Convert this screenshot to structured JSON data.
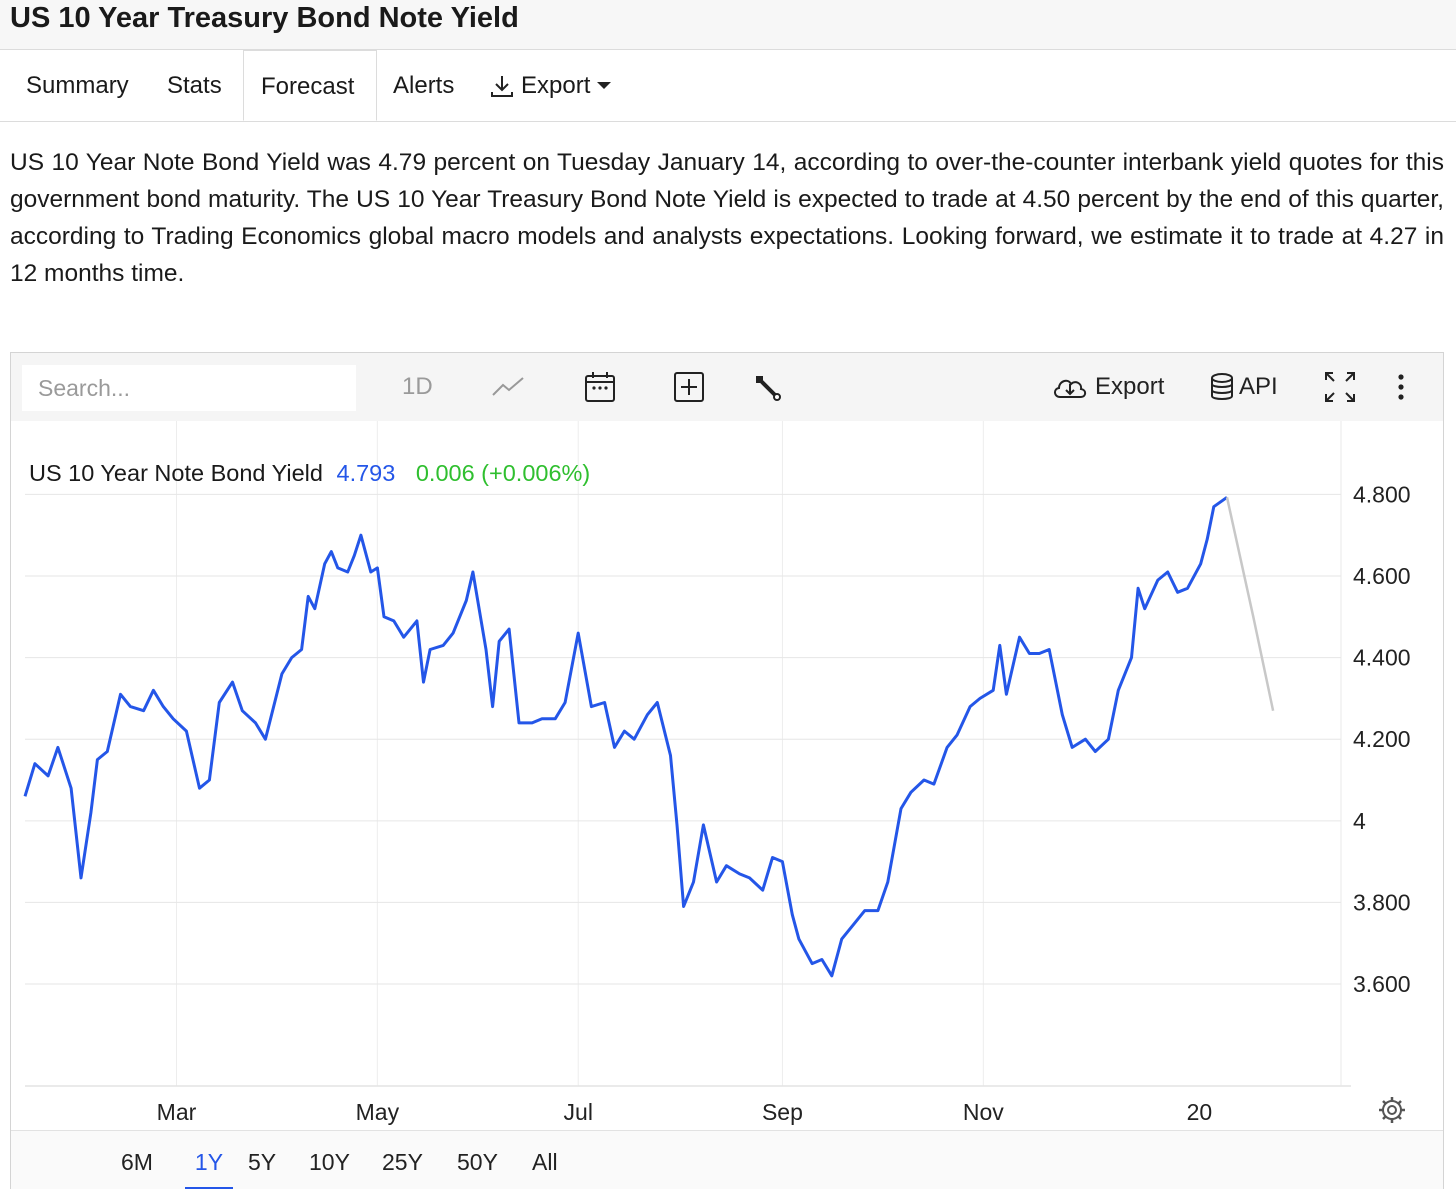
{
  "page": {
    "title": "US 10 Year Treasury Bond Note Yield"
  },
  "tabs": [
    {
      "label": "Summary",
      "active": false
    },
    {
      "label": "Stats",
      "active": false
    },
    {
      "label": "Forecast",
      "active": true
    },
    {
      "label": "Alerts",
      "active": false
    },
    {
      "label": "Export",
      "active": false
    }
  ],
  "description": "US 10 Year Note Bond Yield was 4.79 percent on Tuesday January 14, according to over-the-counter interbank yield quotes for this government bond maturity. The US 10 Year Treasury Bond Note Yield is expected to trade at 4.50 percent by the end of this quarter, according to Trading Economics global macro models and analysts expectations. Looking forward, we estimate it to trade at 4.27 in 12 months time.",
  "toolbar": {
    "search_placeholder": "Search...",
    "interval": "1D",
    "export_label": "Export",
    "api_label": "API"
  },
  "legend": {
    "name": "US 10 Year Note Bond Yield",
    "value": "4.793",
    "change": "0.006 (+0.006%)",
    "value_color": "#2456e8",
    "change_color": "#2fbf2f"
  },
  "ranges": [
    {
      "label": "6M",
      "active": false
    },
    {
      "label": "1Y",
      "active": true
    },
    {
      "label": "5Y",
      "active": false
    },
    {
      "label": "10Y",
      "active": false
    },
    {
      "label": "25Y",
      "active": false
    },
    {
      "label": "50Y",
      "active": false
    },
    {
      "label": "All",
      "active": false
    }
  ],
  "chart_data": {
    "type": "line",
    "title": "",
    "xlabel": "",
    "ylabel": "",
    "x_range": [
      "2024-01-15",
      "2025-01-14"
    ],
    "ylim": [
      3.35,
      4.98
    ],
    "y_ticks": [
      {
        "value": 3.6,
        "label": "3.600"
      },
      {
        "value": 3.8,
        "label": "3.800"
      },
      {
        "value": 4.0,
        "label": "4"
      },
      {
        "value": 4.2,
        "label": "4.200"
      },
      {
        "value": 4.4,
        "label": "4.400"
      },
      {
        "value": 4.6,
        "label": "4.600"
      },
      {
        "value": 4.8,
        "label": "4.800"
      }
    ],
    "x_ticks": [
      {
        "date": "2024-03-01",
        "label": "Mar"
      },
      {
        "date": "2024-05-01",
        "label": "May"
      },
      {
        "date": "2024-07-01",
        "label": "Jul"
      },
      {
        "date": "2024-09-01",
        "label": "Sep"
      },
      {
        "date": "2024-11-01",
        "label": "Nov"
      },
      {
        "date": "2025-01-06",
        "label": "20"
      }
    ],
    "grid": true,
    "series": [
      {
        "color": "#2456e8",
        "points": [
          [
            "2024-01-15",
            4.06
          ],
          [
            "2024-01-18",
            4.14
          ],
          [
            "2024-01-22",
            4.11
          ],
          [
            "2024-01-25",
            4.18
          ],
          [
            "2024-01-29",
            4.08
          ],
          [
            "2024-02-01",
            3.86
          ],
          [
            "2024-02-04",
            4.02
          ],
          [
            "2024-02-06",
            4.15
          ],
          [
            "2024-02-09",
            4.17
          ],
          [
            "2024-02-13",
            4.31
          ],
          [
            "2024-02-16",
            4.28
          ],
          [
            "2024-02-20",
            4.27
          ],
          [
            "2024-02-23",
            4.32
          ],
          [
            "2024-02-26",
            4.28
          ],
          [
            "2024-02-29",
            4.25
          ],
          [
            "2024-03-04",
            4.22
          ],
          [
            "2024-03-08",
            4.08
          ],
          [
            "2024-03-11",
            4.1
          ],
          [
            "2024-03-14",
            4.29
          ],
          [
            "2024-03-18",
            4.34
          ],
          [
            "2024-03-21",
            4.27
          ],
          [
            "2024-03-25",
            4.24
          ],
          [
            "2024-03-28",
            4.2
          ],
          [
            "2024-04-02",
            4.36
          ],
          [
            "2024-04-05",
            4.4
          ],
          [
            "2024-04-08",
            4.42
          ],
          [
            "2024-04-10",
            4.55
          ],
          [
            "2024-04-12",
            4.52
          ],
          [
            "2024-04-15",
            4.63
          ],
          [
            "2024-04-17",
            4.66
          ],
          [
            "2024-04-19",
            4.62
          ],
          [
            "2024-04-22",
            4.61
          ],
          [
            "2024-04-24",
            4.65
          ],
          [
            "2024-04-26",
            4.7
          ],
          [
            "2024-04-29",
            4.61
          ],
          [
            "2024-05-01",
            4.62
          ],
          [
            "2024-05-03",
            4.5
          ],
          [
            "2024-05-06",
            4.49
          ],
          [
            "2024-05-09",
            4.45
          ],
          [
            "2024-05-13",
            4.49
          ],
          [
            "2024-05-15",
            4.34
          ],
          [
            "2024-05-17",
            4.42
          ],
          [
            "2024-05-21",
            4.43
          ],
          [
            "2024-05-24",
            4.46
          ],
          [
            "2024-05-28",
            4.54
          ],
          [
            "2024-05-30",
            4.61
          ],
          [
            "2024-06-03",
            4.42
          ],
          [
            "2024-06-05",
            4.28
          ],
          [
            "2024-06-07",
            4.44
          ],
          [
            "2024-06-10",
            4.47
          ],
          [
            "2024-06-13",
            4.24
          ],
          [
            "2024-06-17",
            4.24
          ],
          [
            "2024-06-20",
            4.25
          ],
          [
            "2024-06-24",
            4.25
          ],
          [
            "2024-06-27",
            4.29
          ],
          [
            "2024-07-01",
            4.46
          ],
          [
            "2024-07-03",
            4.37
          ],
          [
            "2024-07-05",
            4.28
          ],
          [
            "2024-07-09",
            4.29
          ],
          [
            "2024-07-12",
            4.18
          ],
          [
            "2024-07-15",
            4.22
          ],
          [
            "2024-07-18",
            4.2
          ],
          [
            "2024-07-22",
            4.26
          ],
          [
            "2024-07-25",
            4.29
          ],
          [
            "2024-07-29",
            4.16
          ],
          [
            "2024-07-31",
            3.99
          ],
          [
            "2024-08-02",
            3.79
          ],
          [
            "2024-08-05",
            3.85
          ],
          [
            "2024-08-08",
            3.99
          ],
          [
            "2024-08-12",
            3.85
          ],
          [
            "2024-08-15",
            3.89
          ],
          [
            "2024-08-19",
            3.87
          ],
          [
            "2024-08-22",
            3.86
          ],
          [
            "2024-08-26",
            3.83
          ],
          [
            "2024-08-29",
            3.91
          ],
          [
            "2024-09-01",
            3.9
          ],
          [
            "2024-09-04",
            3.77
          ],
          [
            "2024-09-06",
            3.71
          ],
          [
            "2024-09-10",
            3.65
          ],
          [
            "2024-09-13",
            3.66
          ],
          [
            "2024-09-16",
            3.62
          ],
          [
            "2024-09-19",
            3.71
          ],
          [
            "2024-09-23",
            3.75
          ],
          [
            "2024-09-26",
            3.78
          ],
          [
            "2024-09-30",
            3.78
          ],
          [
            "2024-10-03",
            3.85
          ],
          [
            "2024-10-07",
            4.03
          ],
          [
            "2024-10-10",
            4.07
          ],
          [
            "2024-10-14",
            4.1
          ],
          [
            "2024-10-17",
            4.09
          ],
          [
            "2024-10-21",
            4.18
          ],
          [
            "2024-10-24",
            4.21
          ],
          [
            "2024-10-28",
            4.28
          ],
          [
            "2024-10-31",
            4.3
          ],
          [
            "2024-11-04",
            4.32
          ],
          [
            "2024-11-06",
            4.43
          ],
          [
            "2024-11-08",
            4.31
          ],
          [
            "2024-11-12",
            4.45
          ],
          [
            "2024-11-15",
            4.41
          ],
          [
            "2024-11-18",
            4.41
          ],
          [
            "2024-11-21",
            4.42
          ],
          [
            "2024-11-25",
            4.26
          ],
          [
            "2024-11-28",
            4.18
          ],
          [
            "2024-12-02",
            4.2
          ],
          [
            "2024-12-05",
            4.17
          ],
          [
            "2024-12-09",
            4.2
          ],
          [
            "2024-12-12",
            4.32
          ],
          [
            "2024-12-16",
            4.4
          ],
          [
            "2024-12-18",
            4.57
          ],
          [
            "2024-12-20",
            4.52
          ],
          [
            "2024-12-24",
            4.59
          ],
          [
            "2024-12-27",
            4.61
          ],
          [
            "2024-12-30",
            4.56
          ],
          [
            "2025-01-02",
            4.57
          ],
          [
            "2025-01-06",
            4.63
          ],
          [
            "2025-01-08",
            4.69
          ],
          [
            "2025-01-10",
            4.77
          ],
          [
            "2025-01-14",
            4.793
          ]
        ]
      },
      {
        "color": "#c8c8c8",
        "points": [
          [
            "2025-01-14",
            4.793
          ],
          [
            "2025-01-22",
            4.5
          ],
          [
            "2025-01-28",
            4.27
          ]
        ]
      }
    ]
  }
}
